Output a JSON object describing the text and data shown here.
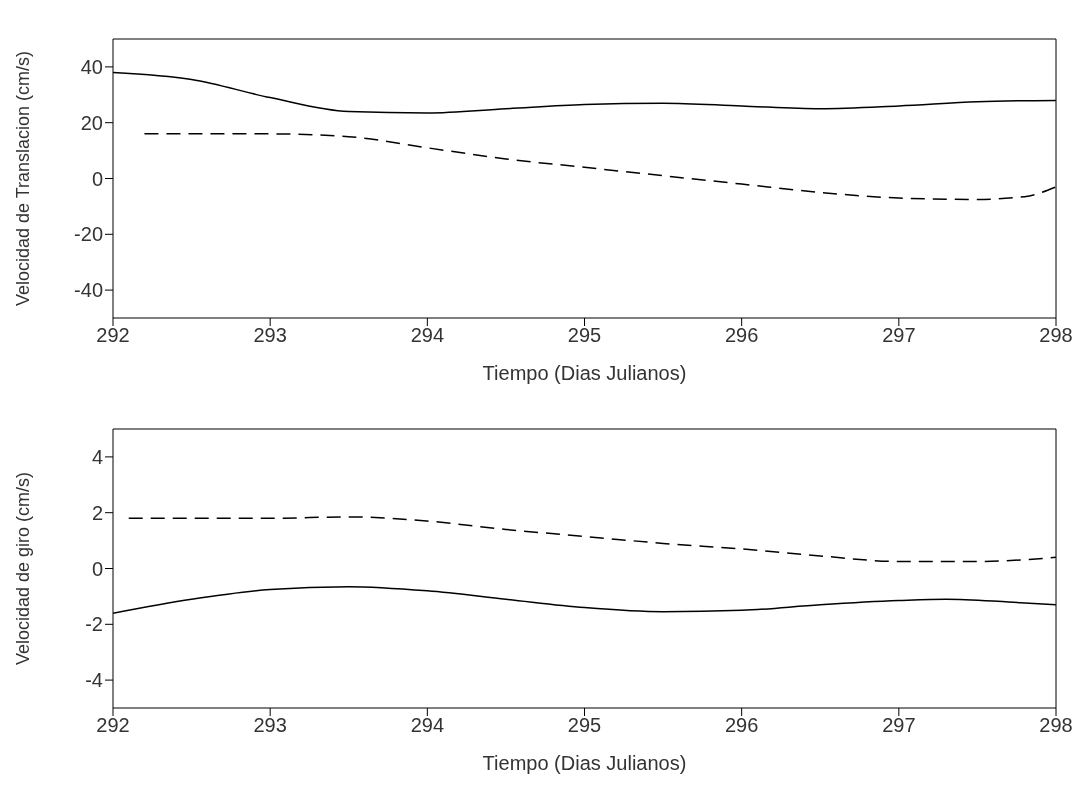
{
  "chart_data": [
    {
      "type": "line",
      "xlabel": "Tiempo (Dias Julianos)",
      "ylabel": "Velocidad de Translacion (cm/s)",
      "xlim": [
        292,
        298
      ],
      "xticks": [
        292,
        293,
        294,
        295,
        296,
        297,
        298
      ],
      "ylim": [
        -50,
        50
      ],
      "yticks": [
        -40,
        -20,
        0,
        20,
        40
      ],
      "grid": false,
      "series": [
        {
          "color": "#000000",
          "line_style": "solid",
          "x": [
            292,
            292.5,
            293,
            293.5,
            294,
            294.5,
            295,
            295.5,
            296,
            296.5,
            297,
            297.5,
            298
          ],
          "values": [
            38,
            35.5,
            29,
            24,
            23.5,
            25,
            26.5,
            27,
            26,
            25,
            26,
            27.5,
            28
          ]
        },
        {
          "color": "#000000",
          "line_style": "dashed",
          "x": [
            292.2,
            292.5,
            293,
            293.5,
            294,
            294.5,
            295,
            295.5,
            296,
            296.5,
            297,
            297.5,
            297.8,
            298
          ],
          "values": [
            16,
            16,
            16,
            15,
            11,
            7,
            4,
            1,
            -2,
            -5,
            -7,
            -7.5,
            -6.5,
            -3
          ]
        }
      ]
    },
    {
      "type": "line",
      "xlabel": "Tiempo (Dias Julianos)",
      "ylabel": "Velocidad de giro (cm/s)",
      "xlim": [
        292,
        298
      ],
      "xticks": [
        292,
        293,
        294,
        295,
        296,
        297,
        298
      ],
      "ylim": [
        -5,
        5
      ],
      "yticks": [
        -4,
        -2,
        0,
        2,
        4
      ],
      "grid": false,
      "series": [
        {
          "color": "#000000",
          "line_style": "dashed",
          "x": [
            292.1,
            292.5,
            293,
            293.5,
            294,
            294.5,
            295,
            295.5,
            296,
            296.5,
            297,
            297.5,
            298
          ],
          "values": [
            1.8,
            1.8,
            1.8,
            1.85,
            1.7,
            1.4,
            1.15,
            0.9,
            0.7,
            0.45,
            0.25,
            0.25,
            0.4
          ]
        },
        {
          "color": "#000000",
          "line_style": "solid",
          "x": [
            292,
            292.5,
            293,
            293.5,
            294,
            294.5,
            295,
            295.5,
            296,
            296.5,
            297,
            297.3,
            297.7,
            298
          ],
          "values": [
            -1.6,
            -1.1,
            -0.75,
            -0.65,
            -0.8,
            -1.1,
            -1.4,
            -1.55,
            -1.5,
            -1.3,
            -1.15,
            -1.1,
            -1.2,
            -1.3
          ]
        }
      ]
    }
  ]
}
